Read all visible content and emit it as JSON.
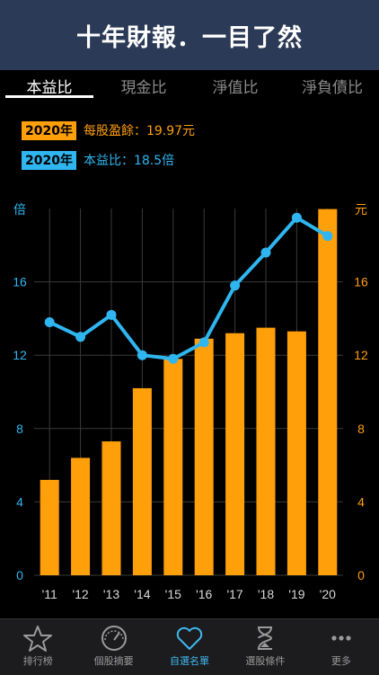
{
  "banner": {
    "title": "十年財報．一目了然"
  },
  "tabs": [
    {
      "label": "本益比",
      "active": true
    },
    {
      "label": "現金比",
      "active": false
    },
    {
      "label": "淨值比",
      "active": false
    },
    {
      "label": "淨負債比",
      "active": false
    }
  ],
  "legend": {
    "eps": {
      "tag": "2020年",
      "text": "每股盈餘：19.97元",
      "color": "#ff9f0a"
    },
    "pe": {
      "tag": "2020年",
      "text": "本益比：18.5倍",
      "color": "#2fb6f0"
    }
  },
  "chart_data": {
    "type": "bar+line",
    "categories": [
      "'11",
      "'12",
      "'13",
      "'14",
      "'15",
      "'16",
      "'17",
      "'18",
      "'19",
      "'20"
    ],
    "left_axis": {
      "unit": "倍",
      "ticks": [
        "0",
        "4",
        "8",
        "12",
        "16"
      ],
      "range": [
        0,
        20
      ]
    },
    "right_axis": {
      "unit": "元",
      "ticks": [
        "0",
        "4",
        "8",
        "12",
        "16"
      ],
      "range": [
        0,
        20
      ]
    },
    "series": [
      {
        "type": "bar",
        "axis": "right",
        "color": "#ff9f0a",
        "values": [
          5.2,
          6.4,
          7.3,
          10.2,
          11.8,
          12.9,
          13.2,
          13.5,
          13.3,
          19.97
        ]
      },
      {
        "type": "line",
        "axis": "left",
        "color": "#2fb6f0",
        "values": [
          13.8,
          13.0,
          14.2,
          12.0,
          11.8,
          12.7,
          15.8,
          17.6,
          19.5,
          18.5
        ]
      }
    ]
  },
  "bottom_nav": [
    {
      "label": "排行榜",
      "icon": "star-icon",
      "active": false
    },
    {
      "label": "個股摘要",
      "icon": "gauge-icon",
      "active": false
    },
    {
      "label": "自選名單",
      "icon": "heart-icon",
      "active": true
    },
    {
      "label": "選股條件",
      "icon": "hourglass-icon",
      "active": false
    },
    {
      "label": "更多",
      "icon": "more-icon",
      "active": false
    }
  ]
}
